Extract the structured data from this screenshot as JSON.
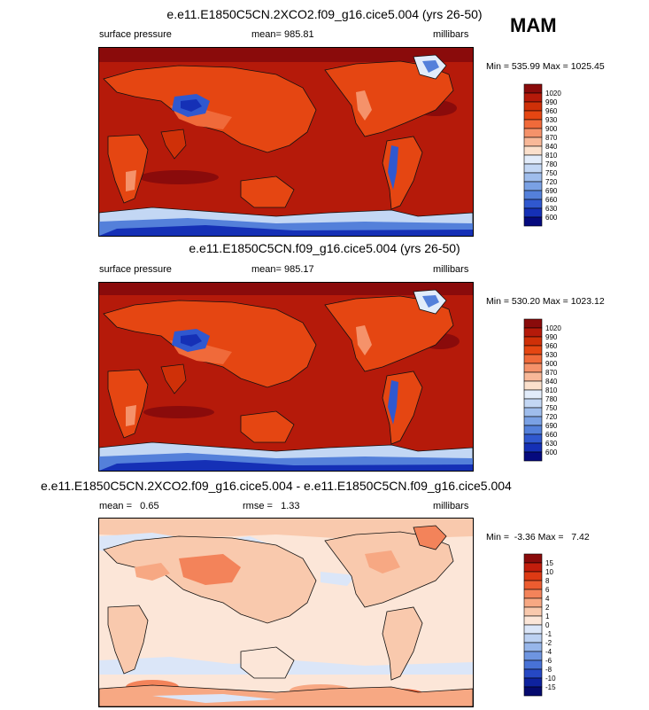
{
  "season": "MAM",
  "panels": [
    {
      "title": "e.e11.E1850C5CN.2XCO2.f09_g16.cice5.004 (yrs 26-50)",
      "left_label": "surface pressure",
      "center_label": "mean= 985.81",
      "right_label": "millibars",
      "minmax": "Min = 535.99 Max = 1025.45",
      "colorbar": {
        "labels": [
          "1020",
          "990",
          "960",
          "930",
          "900",
          "870",
          "840",
          "810",
          "780",
          "750",
          "720",
          "690",
          "660",
          "630",
          "600"
        ],
        "colors": [
          "#8a0b0b",
          "#b51a0a",
          "#cf3008",
          "#e54612",
          "#f06a3a",
          "#f5926a",
          "#f8b898",
          "#fbe0cc",
          "#e2ecfa",
          "#c3d7f4",
          "#9fbdec",
          "#7aa1e4",
          "#5480da",
          "#3058cf",
          "#1530b6",
          "#050a7e"
        ]
      }
    },
    {
      "title": "e.e11.E1850C5CN.f09_g16.cice5.004 (yrs 26-50)",
      "left_label": "surface pressure",
      "center_label": "mean= 985.17",
      "right_label": "millibars",
      "minmax": "Min = 530.20 Max = 1023.12",
      "colorbar": {
        "labels": [
          "1020",
          "990",
          "960",
          "930",
          "900",
          "870",
          "840",
          "810",
          "780",
          "750",
          "720",
          "690",
          "660",
          "630",
          "600"
        ],
        "colors": [
          "#8a0b0b",
          "#b51a0a",
          "#cf3008",
          "#e54612",
          "#f06a3a",
          "#f5926a",
          "#f8b898",
          "#fbe0cc",
          "#e2ecfa",
          "#c3d7f4",
          "#9fbdec",
          "#7aa1e4",
          "#5480da",
          "#3058cf",
          "#1530b6",
          "#050a7e"
        ]
      }
    },
    {
      "title": "e.e11.E1850C5CN.2XCO2.f09_g16.cice5.004 - e.e11.E1850C5CN.f09_g16.cice5.004",
      "left_label": "mean =   0.65",
      "center_label": "rmse =   1.33",
      "right_label": "millibars",
      "minmax": "Min =  -3.36 Max =   7.42",
      "colorbar": {
        "labels": [
          "15",
          "10",
          "8",
          "6",
          "4",
          "2",
          "1",
          "0",
          "-1",
          "-2",
          "-4",
          "-6",
          "-8",
          "-10",
          "-15"
        ],
        "colors": [
          "#8a0b0b",
          "#c21d0c",
          "#dd3a14",
          "#ec5c30",
          "#f3835a",
          "#f7a883",
          "#f9c9ad",
          "#fce6d8",
          "#dbe6f8",
          "#bcd1f2",
          "#97b6ea",
          "#6e95e0",
          "#4872d6",
          "#2648c4",
          "#0e229e",
          "#050a6e"
        ]
      }
    }
  ]
}
